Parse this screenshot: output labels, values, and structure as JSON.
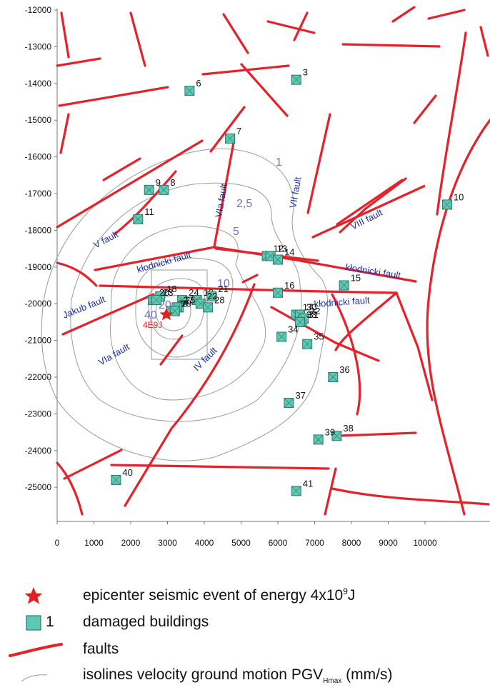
{
  "axes": {
    "x_ticks": [
      "0",
      "1000",
      "2000",
      "3000",
      "4000",
      "5000",
      "6000",
      "7000",
      "8000",
      "9000",
      "10000"
    ],
    "y_ticks": [
      "-12000",
      "-13000",
      "-14000",
      "-15000",
      "-16000",
      "-17000",
      "-18000",
      "-19000",
      "-20000",
      "-21000",
      "-22000",
      "-23000",
      "-24000",
      "-25000"
    ]
  },
  "fault_labels": [
    {
      "id": "v",
      "text": "V fault"
    },
    {
      "id": "via1",
      "text": "VIa fault"
    },
    {
      "id": "vii",
      "text": "VII fault"
    },
    {
      "id": "viii",
      "text": "VIII fault"
    },
    {
      "id": "klod1",
      "text": "kłodnicki fault"
    },
    {
      "id": "klod2",
      "text": "kłodnicki fault"
    },
    {
      "id": "klod3",
      "text": "kłodnicki fault"
    },
    {
      "id": "jakub",
      "text": "Jakub fault"
    },
    {
      "id": "via2",
      "text": "VIa fault"
    },
    {
      "id": "iv",
      "text": "IV fault"
    }
  ],
  "isoline_labels": [
    "1",
    "2,5",
    "5",
    "10",
    "20",
    "40"
  ],
  "epicenter_label": "4E9J",
  "buildings": [
    {
      "n": "3",
      "x": 6500,
      "y": -13900
    },
    {
      "n": "6",
      "x": 3600,
      "y": -14200
    },
    {
      "n": "7",
      "x": 4700,
      "y": -15500
    },
    {
      "n": "8",
      "x": 2900,
      "y": -16900
    },
    {
      "n": "9",
      "x": 2500,
      "y": -16900
    },
    {
      "n": "10",
      "x": 10600,
      "y": -17300
    },
    {
      "n": "11",
      "x": 2200,
      "y": -17700
    },
    {
      "n": "12",
      "x": 5700,
      "y": -18700
    },
    {
      "n": "13",
      "x": 5800,
      "y": -18700
    },
    {
      "n": "14",
      "x": 6000,
      "y": -18800
    },
    {
      "n": "15",
      "x": 7800,
      "y": -19500
    },
    {
      "n": "16",
      "x": 6000,
      "y": -19700
    },
    {
      "n": "17",
      "x": 6500,
      "y": -20300
    },
    {
      "n": "18",
      "x": 2800,
      "y": -19800
    },
    {
      "n": "19",
      "x": 3800,
      "y": -19900
    },
    {
      "n": "20",
      "x": 2600,
      "y": -19900
    },
    {
      "n": "21",
      "x": 4200,
      "y": -19800
    },
    {
      "n": "22",
      "x": 3900,
      "y": -20000
    },
    {
      "n": "23",
      "x": 2700,
      "y": -19900
    },
    {
      "n": "24",
      "x": 3400,
      "y": -19900
    },
    {
      "n": "25",
      "x": 3300,
      "y": -20100
    },
    {
      "n": "26",
      "x": 3100,
      "y": -20200
    },
    {
      "n": "27",
      "x": 3250,
      "y": -20100
    },
    {
      "n": "28",
      "x": 4100,
      "y": -20100
    },
    {
      "n": "29",
      "x": 3200,
      "y": -20200
    },
    {
      "n": "30",
      "x": 6600,
      "y": -20300
    },
    {
      "n": "31",
      "x": 6650,
      "y": -20500
    },
    {
      "n": "32",
      "x": 6700,
      "y": -20400
    },
    {
      "n": "33",
      "x": 6600,
      "y": -20500
    },
    {
      "n": "34",
      "x": 6100,
      "y": -20900
    },
    {
      "n": "35",
      "x": 6800,
      "y": -21100
    },
    {
      "n": "36",
      "x": 7500,
      "y": -22000
    },
    {
      "n": "37",
      "x": 6300,
      "y": -22700
    },
    {
      "n": "38",
      "x": 7600,
      "y": -23600
    },
    {
      "n": "39",
      "x": 7100,
      "y": -23700
    },
    {
      "n": "40",
      "x": 1600,
      "y": -24800
    },
    {
      "n": "41",
      "x": 6500,
      "y": -25100
    }
  ],
  "legend": {
    "epicenter_text": "epicenter seismic event of energy 4x10",
    "epicenter_exp": "9",
    "epicenter_unit": "J",
    "buildings_num": "1",
    "buildings_text": "damaged buildings",
    "faults_text": "faults",
    "isolines_text": "isolines velocity ground motion PGV",
    "isolines_sub": "Hmax",
    "isolines_unit": " (mm/s)"
  },
  "colors": {
    "fault": "#e5212a",
    "building_fill": "#5fc8b4",
    "building_stroke": "#2a7a6a",
    "isoline": "#9a9a9a",
    "label": "#1c2ea3",
    "epicenter": "#e02020"
  }
}
